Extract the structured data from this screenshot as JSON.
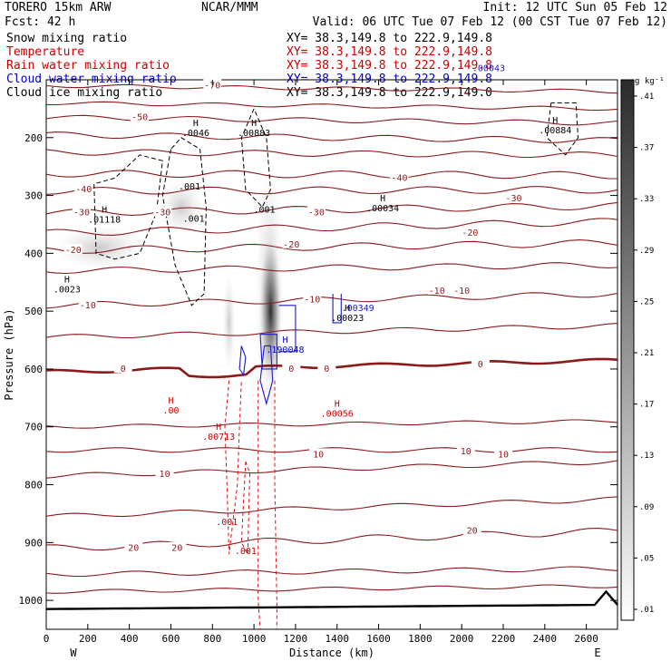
{
  "header": {
    "model": "TORERO  15km ARW",
    "center": "NCAR/MMM",
    "init": "Init: 12 UTC Sun 05 Feb 12",
    "fcst": "Fcst:   42 h",
    "valid": "Valid: 06 UTC Tue 07 Feb 12 (00 CST Tue 07 Feb 12)"
  },
  "legend": [
    {
      "name": "Snow mixing ratio",
      "xy": "",
      "color": "#000000"
    },
    {
      "name": "Temperature",
      "xy": "XY=  38.3,149.8 to 222.9,149.8",
      "color": "#cc0000"
    },
    {
      "name": "Rain water mixing ratio",
      "xy": "XY=  38.3,149.8 to 222.9,149.8",
      "color": "#cc0000"
    },
    {
      "name": "Cloud water mixing ratio",
      "xy": "XY=  38.3,149.8 to 222.9,149.8",
      "color": "#0000cc"
    },
    {
      "name": "Cloud ice mixing ratio",
      "xy": "XY=  38.3,149.8 to 222.9,149.0",
      "color": "#000000"
    }
  ],
  "snow_xy": "XY=  38.3,149.8 to 222.9,149.8",
  "chart_data": {
    "type": "cross-section",
    "xlabel": "Distance (km)",
    "ylabel": "Pressure (hPa)",
    "xlim": [
      0,
      2750
    ],
    "ylim": [
      1050,
      100
    ],
    "xticks": [
      0,
      200,
      400,
      600,
      800,
      1000,
      1200,
      1400,
      1600,
      1800,
      2000,
      2200,
      2400,
      2600
    ],
    "yticks": [
      200,
      300,
      400,
      500,
      600,
      700,
      800,
      900,
      1000
    ],
    "left_end": "W",
    "right_end": "E",
    "colorbar": {
      "unit": "g kg⁻¹",
      "ticks": [
        ".01",
        ".05",
        ".09",
        ".13",
        ".17",
        ".21",
        ".25",
        ".29",
        ".33",
        ".37",
        ".41"
      ]
    },
    "temperature_contours": [
      {
        "label": "-70",
        "x": 800,
        "p": 110
      },
      {
        "label": "-50",
        "x": 450,
        "p": 165
      },
      {
        "label": "-40",
        "x": 180,
        "p": 290
      },
      {
        "label": "-40",
        "x": 1700,
        "p": 270
      },
      {
        "label": "-30",
        "x": 170,
        "p": 330
      },
      {
        "label": "-30",
        "x": 560,
        "p": 330
      },
      {
        "label": "-30",
        "x": 1300,
        "p": 330
      },
      {
        "label": "-30",
        "x": 2250,
        "p": 305
      },
      {
        "label": "-20",
        "x": 130,
        "p": 395
      },
      {
        "label": "-20",
        "x": 1180,
        "p": 385
      },
      {
        "label": "-20",
        "x": 2040,
        "p": 365
      },
      {
        "label": "-10",
        "x": 200,
        "p": 490
      },
      {
        "label": "-10",
        "x": 1280,
        "p": 480
      },
      {
        "label": "-10",
        "x": 1880,
        "p": 465
      },
      {
        "label": "-10",
        "x": 2000,
        "p": 465
      },
      {
        "label": "0",
        "x": 370,
        "p": 600
      },
      {
        "label": "0",
        "x": 1180,
        "p": 600
      },
      {
        "label": "0",
        "x": 1350,
        "p": 600
      },
      {
        "label": "0",
        "x": 2090,
        "p": 592
      },
      {
        "label": "10",
        "x": 570,
        "p": 782
      },
      {
        "label": "10",
        "x": 1310,
        "p": 748
      },
      {
        "label": "10",
        "x": 2020,
        "p": 743
      },
      {
        "label": "10",
        "x": 2200,
        "p": 748
      },
      {
        "label": "20",
        "x": 420,
        "p": 910
      },
      {
        "label": "20",
        "x": 630,
        "p": 910
      },
      {
        "label": "20",
        "x": 2050,
        "p": 880
      }
    ],
    "maxima_labels": [
      {
        "text": "H",
        "value": ".0046",
        "x": 720,
        "p": 180,
        "color": "#000000"
      },
      {
        "text": "H",
        "value": ".00883",
        "x": 1000,
        "p": 180,
        "color": "#000000"
      },
      {
        "text": "H",
        "value": ".00884",
        "x": 2450,
        "p": 175,
        "color": "#000000"
      },
      {
        "text": "H",
        "value": ".01118",
        "x": 280,
        "p": 330,
        "color": "#000000"
      },
      {
        "text": "H",
        "value": ".00034",
        "x": 1620,
        "p": 310,
        "color": "#000000"
      },
      {
        "text": "H",
        "value": ".0023",
        "x": 100,
        "p": 450,
        "color": "#000000"
      },
      {
        "text": "H",
        "value": ".190048",
        "x": 1150,
        "p": 555,
        "color": "#0000cc"
      },
      {
        "text": "H",
        "value": ".00023",
        "x": 1450,
        "p": 500,
        "color": "#000000"
      },
      {
        "text": "H",
        "value": ".00",
        "x": 600,
        "p": 660,
        "color": "#cc0000"
      },
      {
        "text": "H",
        "value": ".00713",
        "x": 830,
        "p": 705,
        "color": "#cc0000"
      },
      {
        "text": "H",
        "value": ".00056",
        "x": 1400,
        "p": 665,
        "color": "#cc0000"
      }
    ]
  },
  "extra_labels": [
    ".001",
    ".001",
    ".001",
    ".001",
    ".001",
    ".00349",
    ".00043"
  ]
}
